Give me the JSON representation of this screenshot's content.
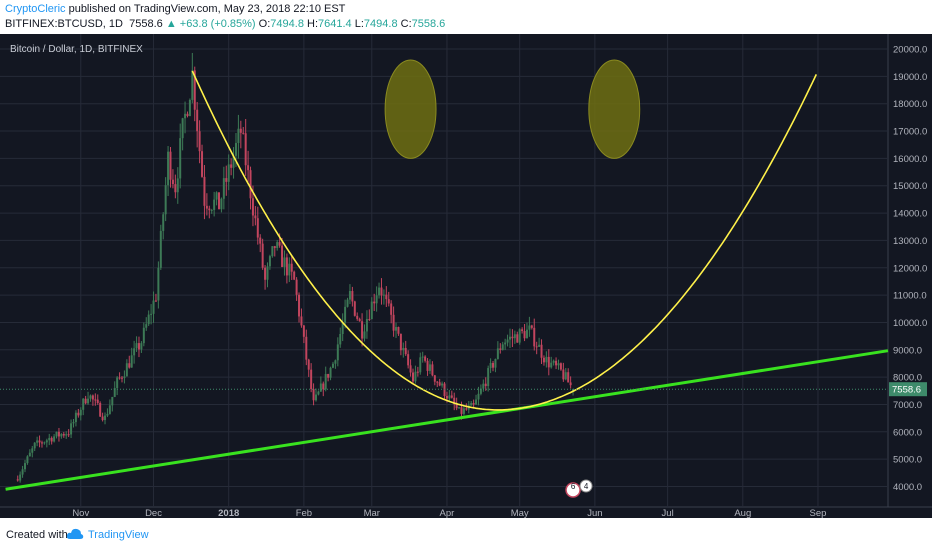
{
  "header": {
    "author": "CryptoCleric",
    "published_text": "published on TradingView.com, May 23, 2018 22:10 EST",
    "symbol": "BITFINEX:BTCUSD, 1D",
    "last": "7558.6",
    "change": "+63.8 (+0.85%)",
    "open_label": "O:",
    "open": "7494.8",
    "high_label": "H:",
    "high": "7641.4",
    "low_label": "L:",
    "low": "7494.8",
    "close_label": "C:",
    "close": "7558.6"
  },
  "chart_title": "Bitcoin / Dollar, 1D, BITFINEX",
  "footer": {
    "created_with": "Created with",
    "brand": "TradingView"
  },
  "colors": {
    "background": "#131722",
    "grid": "#262b38",
    "up": "#3d7a56",
    "down": "#c2455e",
    "trendline": "#39e21f",
    "parabola": "#fff14a",
    "ellipse": "#6f6f12",
    "price_label": "#3e8b6b"
  },
  "chart_data": {
    "type": "candlestick",
    "title": "Bitcoin / Dollar, 1D, BITFINEX",
    "x_ticks": [
      "Nov",
      "Dec",
      "2018",
      "Feb",
      "Mar",
      "Apr",
      "May",
      "Jun",
      "Jul",
      "Aug",
      "Sep"
    ],
    "y_ticks": [
      4000.0,
      5000.0,
      6000.0,
      7000.0,
      8000.0,
      9000.0,
      10000.0,
      11000.0,
      12000.0,
      13000.0,
      14000.0,
      15000.0,
      16000.0,
      17000.0,
      18000.0,
      19000.0,
      20000.0
    ],
    "ylim": [
      3250,
      20550
    ],
    "last_price": 7558.6,
    "close_anchors": [
      [
        "2017-10-06",
        4350
      ],
      [
        "2017-10-13",
        5500
      ],
      [
        "2017-10-20",
        5800
      ],
      [
        "2017-10-27",
        6000
      ],
      [
        "2017-11-04",
        7400
      ],
      [
        "2017-11-11",
        6500
      ],
      [
        "2017-11-16",
        7800
      ],
      [
        "2017-11-26",
        9300
      ],
      [
        "2017-12-02",
        11000
      ],
      [
        "2017-12-07",
        16000
      ],
      [
        "2017-12-10",
        15000
      ],
      [
        "2017-12-13",
        17000
      ],
      [
        "2017-12-17",
        19100
      ],
      [
        "2017-12-22",
        14500
      ],
      [
        "2017-12-28",
        14300
      ],
      [
        "2018-01-06",
        17000
      ],
      [
        "2018-01-16",
        11500
      ],
      [
        "2018-01-20",
        12800
      ],
      [
        "2018-01-28",
        11500
      ],
      [
        "2018-02-05",
        7000
      ],
      [
        "2018-02-13",
        8500
      ],
      [
        "2018-02-20",
        11000
      ],
      [
        "2018-02-25",
        9700
      ],
      [
        "2018-03-04",
        11400
      ],
      [
        "2018-03-18",
        7900
      ],
      [
        "2018-03-22",
        8700
      ],
      [
        "2018-03-27",
        8000
      ],
      [
        "2018-04-06",
        6700
      ],
      [
        "2018-04-12",
        6900
      ],
      [
        "2018-04-18",
        8100
      ],
      [
        "2018-04-24",
        9300
      ],
      [
        "2018-05-05",
        9700
      ],
      [
        "2018-05-12",
        8600
      ],
      [
        "2018-05-18",
        8200
      ],
      [
        "2018-05-23",
        7558.6
      ]
    ],
    "annotations": [
      {
        "type": "trendline",
        "points": [
          [
            "2017-10-01",
            3900
          ],
          [
            "2018-10-13",
            9150
          ]
        ]
      },
      {
        "type": "parabola",
        "points": [
          [
            "2017-12-17",
            19200
          ],
          [
            "2018-04-22",
            6800
          ],
          [
            "2018-09-01",
            19200
          ]
        ]
      },
      {
        "type": "ellipse",
        "center": [
          "2018-03-17",
          17800
        ],
        "radius_days": 7,
        "radius_price": 1800
      },
      {
        "type": "ellipse",
        "center": [
          "2018-06-09",
          17800
        ],
        "radius_days": 7,
        "radius_price": 1800
      }
    ]
  }
}
